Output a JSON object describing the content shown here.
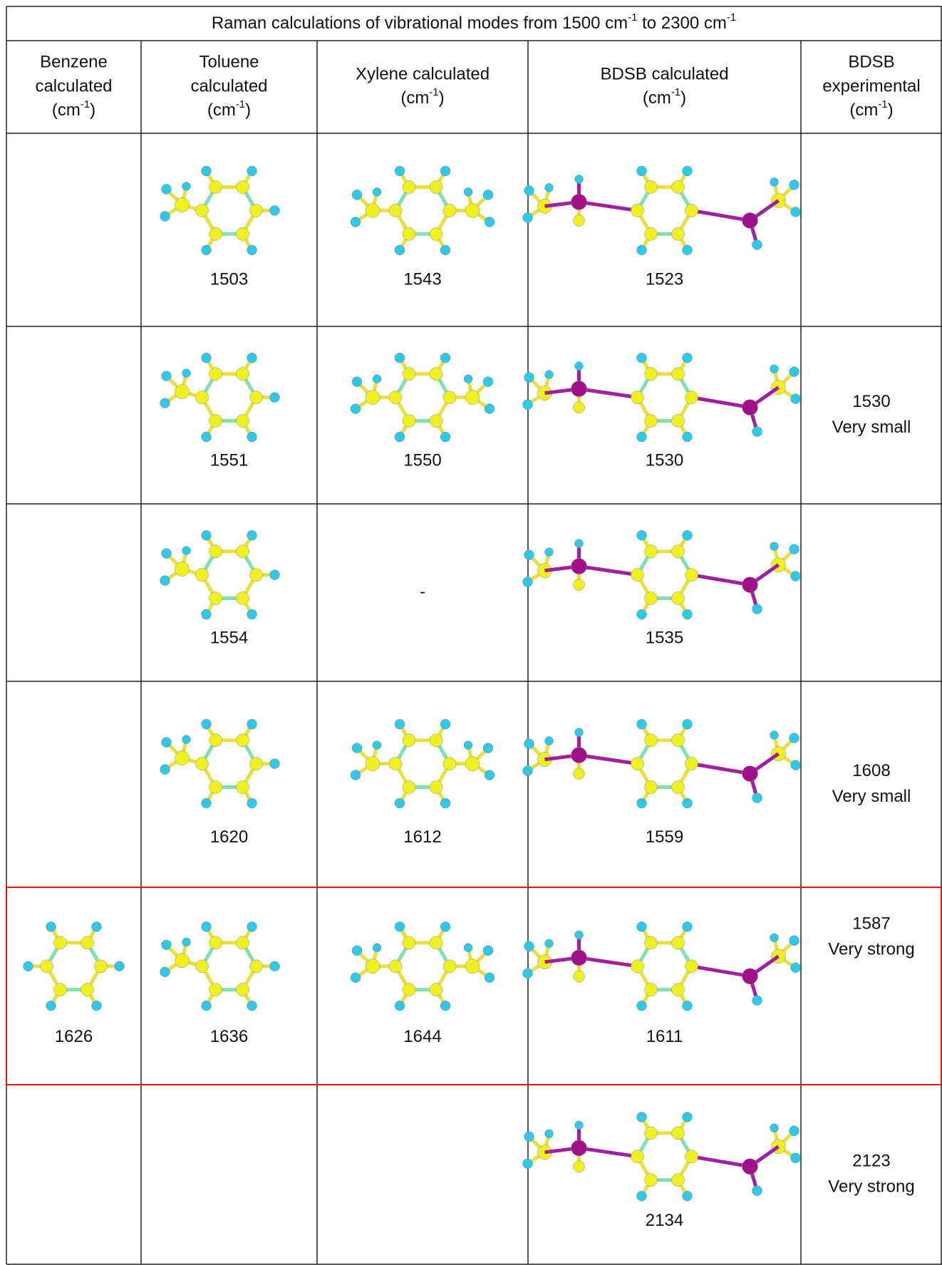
{
  "title": {
    "before": "Raman calculations of vibrational modes from 1500 cm",
    "exp1": "-1",
    "middle": " to 2300 cm",
    "exp2": "-1"
  },
  "headers": [
    {
      "lines": [
        "Benzene",
        "calculated"
      ],
      "unit_open": "(cm",
      "unit_exp": "-1",
      "unit_close": ")"
    },
    {
      "lines": [
        "Toluene",
        "calculated"
      ],
      "unit_open": "(cm",
      "unit_exp": "-1",
      "unit_close": ")"
    },
    {
      "lines": [
        "Xylene calculated"
      ],
      "unit_open": "(cm",
      "unit_exp": "-1",
      "unit_close": ")"
    },
    {
      "lines": [
        "BDSB calculated"
      ],
      "unit_open": "(cm",
      "unit_exp": "-1",
      "unit_close": ")"
    },
    {
      "lines": [
        "BDSB",
        "experimental"
      ],
      "unit_open": "(cm",
      "unit_exp": "-1",
      "unit_close": ")"
    }
  ],
  "table": {
    "highlight_color": "#ee1111",
    "rows": [
      {
        "cells": [
          null,
          1503,
          1543,
          1523,
          null
        ]
      },
      {
        "cells": [
          null,
          1551,
          1550,
          1530,
          {
            "value": 1530,
            "intensity": "Very small"
          }
        ]
      },
      {
        "cells": [
          null,
          1554,
          "-",
          1535,
          null
        ]
      },
      {
        "cells": [
          null,
          1620,
          1612,
          1559,
          {
            "value": 1608,
            "intensity": "Very small"
          }
        ]
      },
      {
        "highlight": true,
        "cells": [
          1626,
          1636,
          1644,
          1611,
          {
            "value": 1587,
            "intensity": "Very strong"
          }
        ]
      },
      {
        "cells": [
          null,
          null,
          null,
          2134,
          {
            "value": 2123,
            "intensity": "Very strong"
          }
        ]
      }
    ]
  }
}
